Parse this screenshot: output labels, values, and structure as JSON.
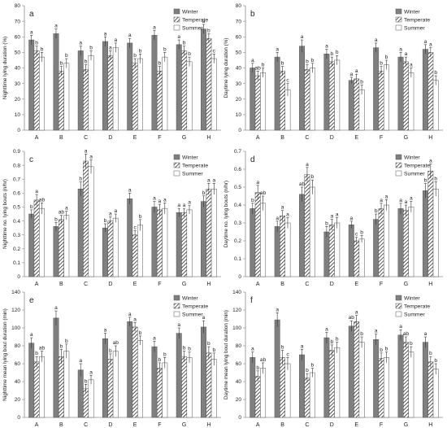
{
  "series_styles": [
    {
      "name": "Winter",
      "fill": "#7f7f7f",
      "pattern": "solid"
    },
    {
      "name": "Temperate",
      "fill": "#ffffff",
      "pattern": "diagonal-hatch"
    },
    {
      "name": "Summer",
      "fill": "#ffffff",
      "pattern": "solid"
    }
  ],
  "chart_data": [
    {
      "panel": "a",
      "type": "bar",
      "ylabel": "Nighttime lying duration (%)",
      "ylim": [
        0,
        80
      ],
      "yticks": [
        0,
        10,
        20,
        30,
        40,
        50,
        60,
        70,
        80
      ],
      "legend": "top-right",
      "categories": [
        "A",
        "B",
        "C",
        "D",
        "E",
        "F",
        "G",
        "H"
      ],
      "series": [
        {
          "name": "Winter",
          "values": [
            58,
            62,
            51,
            57,
            56,
            61,
            55,
            65
          ],
          "errors": [
            3,
            3,
            3,
            3,
            3,
            3,
            3,
            3
          ],
          "sig": [
            "a",
            "a",
            "a",
            "a",
            "a",
            "a",
            "a",
            "a"
          ]
        },
        {
          "name": "Temperate",
          "values": [
            51,
            38,
            39,
            48,
            43,
            38,
            51,
            59
          ],
          "errors": [
            3,
            3,
            3,
            3,
            3,
            3,
            3,
            3
          ],
          "sig": [
            "b",
            "b",
            "b",
            "a",
            "b",
            "b",
            "b",
            "b"
          ]
        },
        {
          "name": "Summer",
          "values": [
            47,
            43,
            48,
            53,
            46,
            47,
            44,
            46
          ],
          "errors": [
            3,
            3,
            3,
            3,
            3,
            3,
            3,
            3
          ],
          "sig": [
            "b",
            "b",
            "b",
            "a",
            "b",
            "b",
            "b",
            "c"
          ]
        }
      ]
    },
    {
      "panel": "b",
      "type": "bar",
      "ylabel": "Daytime lying duration (%)",
      "ylim": [
        0,
        80
      ],
      "yticks": [
        0,
        10,
        20,
        30,
        40,
        50,
        60,
        70,
        80
      ],
      "legend": "top-right",
      "categories": [
        "A",
        "B",
        "C",
        "D",
        "E",
        "F",
        "G",
        "H"
      ],
      "series": [
        {
          "name": "Winter",
          "values": [
            40,
            47,
            54,
            49,
            32,
            53,
            47,
            52
          ],
          "errors": [
            3,
            3,
            4,
            3,
            2,
            3,
            3,
            3
          ],
          "sig": [
            "a",
            "a",
            "a",
            "a",
            "a",
            "a",
            "a",
            "a"
          ]
        },
        {
          "name": "Temperate",
          "values": [
            35,
            38,
            39,
            44,
            33,
            38,
            44,
            50
          ],
          "errors": [
            3,
            3,
            3,
            3,
            3,
            3,
            3,
            3
          ],
          "sig": [
            "ab",
            "b",
            "b",
            "b",
            "a",
            "b",
            "a",
            "a"
          ]
        },
        {
          "name": "Summer",
          "values": [
            37,
            26,
            40,
            45,
            26,
            42,
            37,
            32
          ],
          "errors": [
            3,
            4,
            3,
            3,
            3,
            3,
            3,
            3
          ],
          "sig": [
            "b",
            "c",
            "b",
            "b",
            "b",
            "b",
            "a",
            "b"
          ]
        }
      ]
    },
    {
      "panel": "c",
      "type": "bar",
      "ylabel": "Nighttime no. lying bouts (n/hr)",
      "ylim": [
        0,
        0.9
      ],
      "yticks": [
        0,
        0.1,
        0.2,
        0.3,
        0.4,
        0.5,
        0.6,
        0.7,
        0.8,
        0.9
      ],
      "legend": "top-right",
      "categories": [
        "A",
        "B",
        "C",
        "D",
        "E",
        "F",
        "G",
        "H"
      ],
      "series": [
        {
          "name": "Winter",
          "values": [
            0.45,
            0.36,
            0.63,
            0.35,
            0.56,
            0.5,
            0.46,
            0.54
          ],
          "errors": [
            0.03,
            0.03,
            0.05,
            0.03,
            0.04,
            0.04,
            0.03,
            0.04
          ],
          "sig": [
            "b",
            "b",
            "b",
            "b",
            "a",
            "a",
            "a",
            "b"
          ]
        },
        {
          "name": "Temperate",
          "values": [
            0.55,
            0.41,
            0.83,
            0.4,
            0.3,
            0.48,
            0.46,
            0.63
          ],
          "errors": [
            0.04,
            0.03,
            0.05,
            0.03,
            0.03,
            0.04,
            0.03,
            0.04
          ],
          "sig": [
            "a",
            "ab",
            "a",
            "a",
            "c",
            "a",
            "a",
            "a"
          ]
        },
        {
          "name": "Summer",
          "values": [
            0.49,
            0.44,
            0.79,
            0.42,
            0.37,
            0.49,
            0.48,
            0.63
          ],
          "errors": [
            0.04,
            0.03,
            0.05,
            0.03,
            0.04,
            0.04,
            0.03,
            0.04
          ],
          "sig": [
            "ab",
            "a",
            "a",
            "a",
            "b",
            "a",
            "a",
            "a"
          ]
        }
      ]
    },
    {
      "panel": "d",
      "type": "bar",
      "ylabel": "Daytime no. lying bouts (n/hr)",
      "ylim": [
        0,
        0.7
      ],
      "yticks": [
        0,
        0.1,
        0.2,
        0.3,
        0.4,
        0.5,
        0.6,
        0.7
      ],
      "legend": "top-right",
      "categories": [
        "A",
        "B",
        "C",
        "D",
        "E",
        "F",
        "G",
        "H"
      ],
      "series": [
        {
          "name": "Winter",
          "values": [
            0.38,
            0.28,
            0.46,
            0.25,
            0.29,
            0.32,
            0.38,
            0.48
          ],
          "errors": [
            0.03,
            0.03,
            0.04,
            0.03,
            0.02,
            0.03,
            0.03,
            0.04
          ],
          "sig": [
            "b",
            "a",
            "ab",
            "b",
            "a",
            "b",
            "a",
            "b"
          ]
        },
        {
          "name": "Temperate",
          "values": [
            0.47,
            0.34,
            0.57,
            0.29,
            0.2,
            0.38,
            0.37,
            0.59
          ],
          "errors": [
            0.04,
            0.03,
            0.04,
            0.03,
            0.02,
            0.03,
            0.03,
            0.04
          ],
          "sig": [
            "a",
            "a",
            "a",
            "a",
            "c",
            "a",
            "a",
            "a"
          ]
        },
        {
          "name": "Summer",
          "values": [
            0.41,
            0.3,
            0.5,
            0.3,
            0.21,
            0.4,
            0.39,
            0.49
          ],
          "errors": [
            0.04,
            0.03,
            0.04,
            0.03,
            0.02,
            0.03,
            0.03,
            0.04
          ],
          "sig": [
            "ab",
            "a",
            "b",
            "a",
            "b",
            "a",
            "a",
            "b"
          ]
        }
      ]
    },
    {
      "panel": "e",
      "type": "bar",
      "ylabel": "Nighttime mean lying bout duration (min)",
      "ylim": [
        0,
        140
      ],
      "yticks": [
        0,
        20,
        40,
        60,
        80,
        100,
        120,
        140
      ],
      "legend": "top-right",
      "categories": [
        "A",
        "B",
        "C",
        "D",
        "E",
        "F",
        "G",
        "H"
      ],
      "series": [
        {
          "name": "Winter",
          "values": [
            83,
            111,
            53,
            88,
            107,
            79,
            94,
            101
          ],
          "errors": [
            6,
            8,
            7,
            6,
            5,
            6,
            6,
            7
          ],
          "sig": [
            "a",
            "a",
            "a",
            "a",
            "a",
            "a",
            "a",
            "a"
          ]
        },
        {
          "name": "Temperate",
          "values": [
            62,
            68,
            32,
            65,
            101,
            55,
            68,
            72
          ],
          "errors": [
            6,
            8,
            5,
            6,
            5,
            6,
            6,
            7
          ],
          "sig": [
            "b",
            "b",
            "b",
            "b",
            "a",
            "b",
            "b",
            "b"
          ]
        },
        {
          "name": "Summer",
          "values": [
            68,
            74,
            42,
            74,
            86,
            61,
            67,
            65
          ],
          "errors": [
            6,
            8,
            5,
            6,
            5,
            6,
            6,
            7
          ],
          "sig": [
            "ab",
            "b",
            "a",
            "ab",
            "b",
            "b",
            "b",
            "b"
          ]
        }
      ]
    },
    {
      "panel": "f",
      "type": "bar",
      "ylabel": "Daytime mean lying bout duration (min)",
      "ylim": [
        0,
        140
      ],
      "yticks": [
        0,
        20,
        40,
        60,
        80,
        100,
        120,
        140
      ],
      "legend": "top-right",
      "categories": [
        "A",
        "B",
        "C",
        "D",
        "E",
        "F",
        "G",
        "H"
      ],
      "series": [
        {
          "name": "Winter",
          "values": [
            67,
            109,
            70,
            89,
            102,
            87,
            92,
            84
          ],
          "errors": [
            6,
            8,
            6,
            6,
            6,
            6,
            6,
            6
          ],
          "sig": [
            "a",
            "a",
            "a",
            "a",
            "ab",
            "a",
            "a",
            "a"
          ]
        },
        {
          "name": "Temperate",
          "values": [
            46,
            67,
            44,
            75,
            107,
            66,
            84,
            62
          ],
          "errors": [
            6,
            8,
            5,
            6,
            7,
            6,
            6,
            6
          ],
          "sig": [
            "b",
            "b",
            "b",
            "b",
            "a",
            "b",
            "ab",
            "b"
          ]
        },
        {
          "name": "Summer",
          "values": [
            55,
            60,
            50,
            78,
            84,
            67,
            73,
            54
          ],
          "errors": [
            6,
            7,
            5,
            6,
            6,
            6,
            6,
            6
          ],
          "sig": [
            "ab",
            "c",
            "b",
            "b",
            "b",
            "b",
            "b",
            "b"
          ]
        }
      ]
    }
  ]
}
